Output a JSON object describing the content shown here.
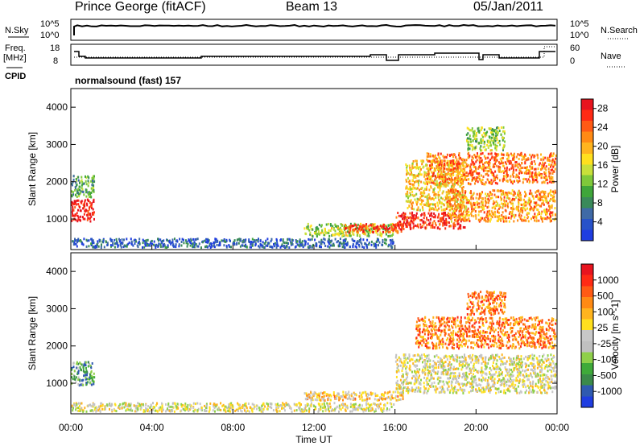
{
  "header": {
    "title": "Prince George (fitACF)",
    "beam": "Beam 13",
    "date": "05/Jan/2011"
  },
  "status_panel": {
    "nsky_label": "N.Sky",
    "nsearch_label": "N.Search",
    "freq_label_1": "Freq.",
    "freq_label_2": "[MHz]",
    "nave_label": "Nave",
    "cpid_label": "CPID",
    "cpid_text": "normalsound (fast) 157",
    "noise_ticks": [
      "10^5",
      "10^0"
    ],
    "freq_ticks": [
      "18",
      "8"
    ],
    "nave_ticks": [
      "60",
      "0"
    ]
  },
  "chart_data": [
    {
      "type": "heatmap",
      "name_on_chart": "Power [dB]",
      "ylabel": "Slant Range [km]",
      "ylim": [
        180,
        4500
      ],
      "yticks": [
        1000,
        2000,
        3000,
        4000
      ],
      "xlim": [
        0,
        24
      ],
      "colorbar": {
        "label": "Power [dB]",
        "ticks": [
          "4",
          "8",
          "12",
          "16",
          "20",
          "24",
          "28"
        ],
        "colors": [
          "#1f3de0",
          "#2752c9",
          "#3f6aa6",
          "#3a8a5a",
          "#3fa63a",
          "#7fc93a",
          "#c8e03a",
          "#ffe01e",
          "#ffb41e",
          "#ff8a14",
          "#ff5a14",
          "#ff2a14",
          "#e8141e"
        ]
      },
      "regions": [
        {
          "t": [
            0.0,
            1.2
          ],
          "r": [
            900,
            1550
          ],
          "level": 0.95
        },
        {
          "t": [
            0.0,
            1.2
          ],
          "r": [
            1550,
            2200
          ],
          "level": 0.35
        },
        {
          "t": [
            0.0,
            16.0
          ],
          "r": [
            200,
            500
          ],
          "level": 0.15
        },
        {
          "t": [
            11.5,
            16.0
          ],
          "r": [
            500,
            900
          ],
          "level": 0.45
        },
        {
          "t": [
            13.5,
            16.5
          ],
          "r": [
            600,
            900
          ],
          "level": 0.85
        },
        {
          "t": [
            16.0,
            19.5
          ],
          "r": [
            700,
            1200
          ],
          "level": 0.9
        },
        {
          "t": [
            16.5,
            19.5
          ],
          "r": [
            1200,
            2600
          ],
          "level": 0.6
        },
        {
          "t": [
            17.5,
            24.0
          ],
          "r": [
            1900,
            2800
          ],
          "level": 0.75
        },
        {
          "t": [
            18.5,
            24.0
          ],
          "r": [
            900,
            1800
          ],
          "level": 0.7
        },
        {
          "t": [
            19.5,
            21.5
          ],
          "r": [
            2800,
            3500
          ],
          "level": 0.45
        }
      ]
    },
    {
      "type": "heatmap",
      "name_on_chart": "Velocity [m s^-1]",
      "ylabel": "Slant Range [km]",
      "xlabel": "Time UT",
      "ylim": [
        180,
        4500
      ],
      "yticks": [
        1000,
        2000,
        3000,
        4000
      ],
      "xlim": [
        0,
        24
      ],
      "xticks": [
        "00:00",
        "04:00",
        "08:00",
        "12:00",
        "16:00",
        "20:00",
        "00:00"
      ],
      "colorbar": {
        "label": "Velocity [m s^-1]",
        "ticks": [
          "1000",
          "500",
          "100",
          "25",
          "-25",
          "-100",
          "-500",
          "-1000"
        ],
        "colors": [
          "#1f3de0",
          "#2f5ab0",
          "#3b8a4a",
          "#3faa3a",
          "#8fd04a",
          "#c0c0c0",
          "#c8c8c8",
          "#ffe01e",
          "#ffb41e",
          "#ff8a14",
          "#ff5a14",
          "#ff2a14",
          "#e8141e"
        ]
      },
      "regions": [
        {
          "t": [
            0.0,
            1.2
          ],
          "r": [
            900,
            1600
          ],
          "level": 0.25
        },
        {
          "t": [
            0.0,
            16.0
          ],
          "r": [
            200,
            500
          ],
          "level": 0.5
        },
        {
          "t": [
            11.5,
            16.5
          ],
          "r": [
            500,
            800
          ],
          "level": 0.6
        },
        {
          "t": [
            16.0,
            24.0
          ],
          "r": [
            700,
            1800
          ],
          "level": 0.5
        },
        {
          "t": [
            17.0,
            24.0
          ],
          "r": [
            1900,
            2800
          ],
          "level": 0.75
        },
        {
          "t": [
            19.5,
            21.5
          ],
          "r": [
            2800,
            3500
          ],
          "level": 0.75
        }
      ]
    }
  ]
}
